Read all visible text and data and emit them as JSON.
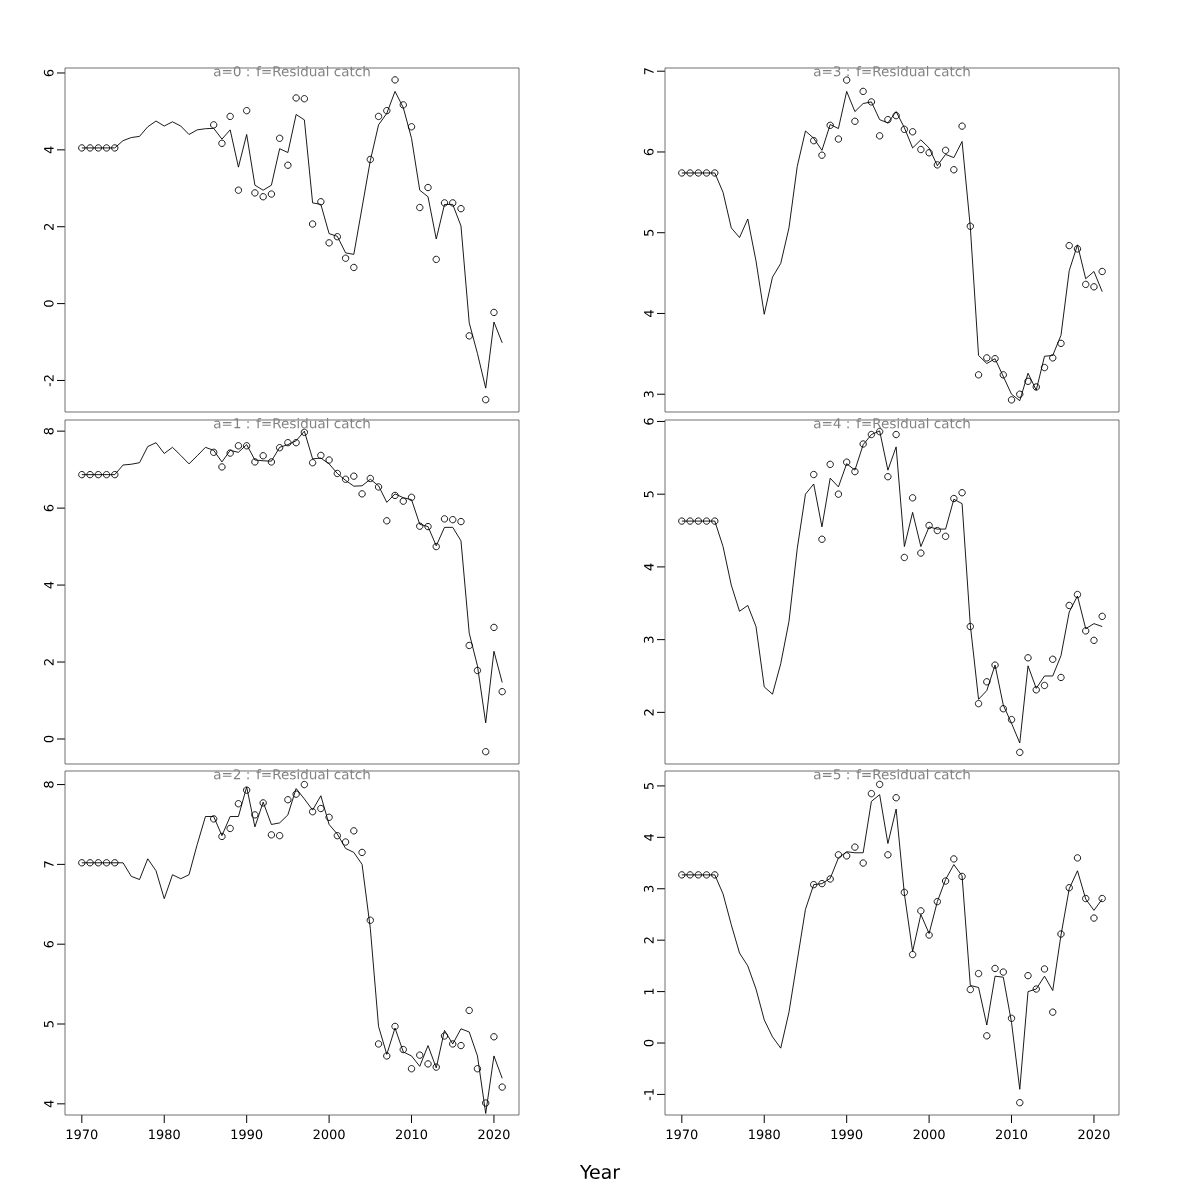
{
  "chart_data": [
    {
      "type": "line",
      "title": "a=0  :  f=Residual catch",
      "xlim": [
        1967.96,
        2023.04
      ],
      "ylim": [
        -2.82,
        6.13
      ],
      "yticks": [
        -2,
        0,
        2,
        4,
        6
      ],
      "tick_labels": "y",
      "series": [
        {
          "type": "line",
          "color": "#000000",
          "marker": "none",
          "x": [
            1970,
            1971,
            1972,
            1973,
            1974,
            1975,
            1976,
            1977,
            1978,
            1979,
            1980,
            1981,
            1982,
            1983,
            1984,
            1985,
            1986,
            1987,
            1988,
            1989,
            1990,
            1991,
            1992,
            1993,
            1994,
            1995,
            1996,
            1997,
            1998,
            1999,
            2000,
            2001,
            2002,
            2003,
            2004,
            2005,
            2006,
            2007,
            2008,
            2009,
            2010,
            2011,
            2012,
            2013,
            2014,
            2015,
            2016,
            2017,
            2018,
            2019,
            2020,
            2021
          ],
          "values": [
            4.05,
            4.05,
            4.05,
            4.05,
            4.05,
            4.24,
            4.32,
            4.35,
            4.6,
            4.75,
            4.62,
            4.73,
            4.62,
            4.4,
            4.52,
            4.55,
            4.56,
            4.28,
            4.52,
            3.55,
            4.4,
            3.08,
            2.95,
            3.08,
            4.03,
            3.93,
            4.92,
            4.78,
            2.62,
            2.58,
            1.82,
            1.75,
            1.32,
            1.28,
            2.5,
            3.72,
            4.65,
            4.95,
            5.52,
            5.1,
            4.3,
            2.95,
            2.78,
            1.68,
            2.58,
            2.58,
            2.02,
            -0.5,
            -1.3,
            -2.2,
            -0.48,
            -1.02
          ]
        },
        {
          "type": "scatter",
          "color": "#000000",
          "marker": "circle",
          "x": [
            1970,
            1971,
            1972,
            1973,
            1974,
            1986,
            1987,
            1988,
            1989,
            1990,
            1991,
            1992,
            1993,
            1994,
            1995,
            1996,
            1997,
            1998,
            1999,
            2000,
            2001,
            2002,
            2003,
            2005,
            2006,
            2007,
            2008,
            2009,
            2010,
            2011,
            2012,
            2013,
            2014,
            2015,
            2016,
            2017,
            2019,
            2020
          ],
          "values": [
            4.05,
            4.05,
            4.05,
            4.05,
            4.05,
            4.65,
            4.17,
            4.87,
            2.95,
            5.02,
            2.88,
            2.78,
            2.85,
            4.3,
            3.6,
            5.35,
            5.33,
            2.07,
            2.65,
            1.58,
            1.74,
            1.18,
            0.94,
            3.75,
            4.87,
            5.02,
            5.82,
            5.17,
            4.6,
            2.5,
            3.02,
            1.15,
            2.62,
            2.62,
            2.47,
            -0.84,
            -2.5,
            -0.23
          ]
        }
      ]
    },
    {
      "type": "line",
      "title": "a=1  :  f=Residual catch",
      "xlim": [
        1967.96,
        2023.04
      ],
      "ylim": [
        -0.65,
        8.29
      ],
      "yticks": [
        0,
        2,
        4,
        6,
        8
      ],
      "tick_labels": "y",
      "series": [
        {
          "type": "line",
          "color": "#000000",
          "marker": "none",
          "x": [
            1970,
            1971,
            1972,
            1973,
            1974,
            1975,
            1976,
            1977,
            1978,
            1979,
            1980,
            1981,
            1982,
            1983,
            1984,
            1985,
            1986,
            1987,
            1988,
            1989,
            1990,
            1991,
            1992,
            1993,
            1994,
            1995,
            1996,
            1997,
            1998,
            1999,
            2000,
            2001,
            2002,
            2003,
            2004,
            2005,
            2006,
            2007,
            2008,
            2009,
            2010,
            2011,
            2012,
            2013,
            2014,
            2015,
            2016,
            2017,
            2018,
            2019,
            2020,
            2021
          ],
          "values": [
            6.87,
            6.87,
            6.87,
            6.87,
            6.87,
            7.12,
            7.14,
            7.18,
            7.6,
            7.7,
            7.42,
            7.58,
            7.37,
            7.15,
            7.36,
            7.58,
            7.5,
            7.2,
            7.5,
            7.45,
            7.65,
            7.25,
            7.23,
            7.22,
            7.58,
            7.65,
            7.75,
            8.0,
            7.28,
            7.3,
            7.15,
            6.9,
            6.72,
            6.57,
            6.58,
            6.75,
            6.58,
            6.15,
            6.37,
            6.27,
            6.22,
            5.58,
            5.52,
            5.02,
            5.5,
            5.5,
            5.15,
            2.75,
            1.9,
            0.42,
            2.28,
            1.47
          ]
        },
        {
          "type": "scatter",
          "color": "#000000",
          "marker": "circle",
          "x": [
            1970,
            1971,
            1972,
            1973,
            1974,
            1986,
            1987,
            1988,
            1989,
            1990,
            1991,
            1992,
            1993,
            1994,
            1995,
            1996,
            1997,
            1998,
            1999,
            2000,
            2001,
            2002,
            2003,
            2004,
            2005,
            2006,
            2007,
            2008,
            2009,
            2010,
            2011,
            2012,
            2013,
            2014,
            2015,
            2016,
            2017,
            2018,
            2019,
            2020,
            2021
          ],
          "values": [
            6.87,
            6.87,
            6.87,
            6.87,
            6.87,
            7.45,
            7.07,
            7.43,
            7.62,
            7.62,
            7.2,
            7.36,
            7.2,
            7.57,
            7.7,
            7.7,
            7.97,
            7.18,
            7.37,
            7.25,
            6.9,
            6.75,
            6.83,
            6.37,
            6.77,
            6.55,
            5.67,
            6.33,
            6.18,
            6.28,
            5.53,
            5.52,
            5.0,
            5.72,
            5.7,
            5.65,
            2.43,
            1.78,
            -0.33,
            2.9,
            1.23
          ]
        }
      ]
    },
    {
      "type": "line",
      "title": "a=2  :  f=Residual catch",
      "xlabel": "Year",
      "xlim": [
        1967.96,
        2023.04
      ],
      "xticks": [
        1970,
        1980,
        1990,
        2000,
        2010,
        2020
      ],
      "ylim": [
        3.86,
        8.17
      ],
      "yticks": [
        4,
        5,
        6,
        7,
        8
      ],
      "series": [
        {
          "type": "line",
          "color": "#000000",
          "marker": "none",
          "x": [
            1970,
            1971,
            1972,
            1973,
            1974,
            1975,
            1976,
            1977,
            1978,
            1979,
            1980,
            1981,
            1982,
            1983,
            1984,
            1985,
            1986,
            1987,
            1988,
            1989,
            1990,
            1991,
            1992,
            1993,
            1994,
            1995,
            1996,
            1997,
            1998,
            1999,
            2000,
            2001,
            2002,
            2003,
            2004,
            2005,
            2006,
            2007,
            2008,
            2009,
            2010,
            2011,
            2012,
            2013,
            2014,
            2015,
            2016,
            2017,
            2018,
            2019,
            2020,
            2021
          ],
          "values": [
            7.02,
            7.02,
            7.02,
            7.02,
            7.02,
            7.02,
            6.85,
            6.81,
            7.07,
            6.92,
            6.57,
            6.87,
            6.82,
            6.87,
            7.25,
            7.6,
            7.6,
            7.36,
            7.6,
            7.6,
            7.97,
            7.47,
            7.78,
            7.5,
            7.52,
            7.62,
            7.95,
            7.82,
            7.68,
            7.86,
            7.5,
            7.38,
            7.2,
            7.15,
            7.0,
            6.2,
            4.97,
            4.62,
            4.95,
            4.65,
            4.6,
            4.47,
            4.73,
            4.45,
            4.92,
            4.75,
            4.94,
            4.9,
            4.6,
            3.88,
            4.6,
            4.32
          ]
        },
        {
          "type": "scatter",
          "color": "#000000",
          "marker": "circle",
          "x": [
            1970,
            1971,
            1972,
            1973,
            1974,
            1986,
            1987,
            1988,
            1989,
            1990,
            1991,
            1992,
            1993,
            1994,
            1995,
            1996,
            1997,
            1998,
            1999,
            2000,
            2001,
            2002,
            2003,
            2004,
            2005,
            2006,
            2007,
            2008,
            2009,
            2010,
            2011,
            2012,
            2013,
            2014,
            2015,
            2016,
            2017,
            2018,
            2019,
            2020,
            2021
          ],
          "values": [
            7.02,
            7.02,
            7.02,
            7.02,
            7.02,
            7.57,
            7.35,
            7.45,
            7.76,
            7.93,
            7.62,
            7.77,
            7.37,
            7.36,
            7.81,
            7.88,
            8.0,
            7.66,
            7.7,
            7.59,
            7.36,
            7.28,
            7.42,
            7.15,
            6.3,
            4.75,
            4.6,
            4.97,
            4.68,
            4.44,
            4.61,
            4.5,
            4.46,
            4.85,
            4.75,
            4.73,
            5.17,
            4.44,
            4.01,
            4.84,
            4.21
          ]
        }
      ]
    },
    {
      "type": "line",
      "title": "a=3  :  f=Residual catch",
      "xlim": [
        1967.96,
        2023.04
      ],
      "ylim": [
        2.78,
        7.04
      ],
      "yticks": [
        3,
        4,
        5,
        6,
        7
      ],
      "tick_labels": "y",
      "series": [
        {
          "type": "line",
          "color": "#000000",
          "marker": "none",
          "x": [
            1970,
            1971,
            1972,
            1973,
            1974,
            1975,
            1976,
            1977,
            1978,
            1979,
            1980,
            1981,
            1982,
            1983,
            1984,
            1985,
            1986,
            1987,
            1988,
            1989,
            1990,
            1991,
            1992,
            1993,
            1994,
            1995,
            1996,
            1997,
            1998,
            1999,
            2000,
            2001,
            2002,
            2003,
            2004,
            2005,
            2006,
            2007,
            2008,
            2009,
            2010,
            2011,
            2012,
            2013,
            2014,
            2015,
            2016,
            2017,
            2018,
            2019,
            2020,
            2021
          ],
          "values": [
            5.74,
            5.74,
            5.74,
            5.74,
            5.74,
            5.5,
            5.06,
            4.94,
            5.17,
            4.65,
            3.99,
            4.45,
            4.62,
            5.06,
            5.82,
            6.26,
            6.17,
            6.02,
            6.34,
            6.29,
            6.75,
            6.5,
            6.6,
            6.62,
            6.4,
            6.36,
            6.5,
            6.3,
            6.05,
            6.15,
            6.05,
            5.83,
            5.97,
            5.93,
            6.13,
            5.07,
            3.48,
            3.38,
            3.44,
            3.22,
            3.0,
            2.92,
            3.26,
            3.05,
            3.47,
            3.48,
            3.73,
            4.53,
            4.85,
            4.43,
            4.52,
            4.27
          ]
        },
        {
          "type": "scatter",
          "color": "#000000",
          "marker": "circle",
          "x": [
            1970,
            1971,
            1972,
            1973,
            1974,
            1986,
            1987,
            1988,
            1989,
            1990,
            1991,
            1992,
            1993,
            1994,
            1995,
            1996,
            1997,
            1998,
            1999,
            2000,
            2001,
            2002,
            2003,
            2004,
            2005,
            2006,
            2007,
            2008,
            2009,
            2010,
            2011,
            2012,
            2013,
            2014,
            2015,
            2016,
            2017,
            2018,
            2019,
            2020,
            2021
          ],
          "values": [
            5.74,
            5.74,
            5.74,
            5.74,
            5.74,
            6.14,
            5.96,
            6.33,
            6.16,
            6.89,
            6.38,
            6.75,
            6.62,
            6.2,
            6.4,
            6.45,
            6.28,
            6.25,
            6.03,
            5.99,
            5.84,
            6.02,
            5.78,
            6.32,
            5.08,
            3.24,
            3.45,
            3.44,
            3.24,
            2.93,
            3.0,
            3.16,
            3.09,
            3.33,
            3.45,
            3.63,
            4.84,
            4.8,
            4.36,
            4.33,
            4.52
          ]
        }
      ]
    },
    {
      "type": "line",
      "title": "a=4  :  f=Residual catch",
      "xlim": [
        1967.96,
        2023.04
      ],
      "ylim": [
        1.29,
        6.02
      ],
      "yticks": [
        2,
        3,
        4,
        5,
        6
      ],
      "tick_labels": "y",
      "series": [
        {
          "type": "line",
          "color": "#000000",
          "marker": "none",
          "x": [
            1970,
            1971,
            1972,
            1973,
            1974,
            1975,
            1976,
            1977,
            1978,
            1979,
            1980,
            1981,
            1982,
            1983,
            1984,
            1985,
            1986,
            1987,
            1988,
            1989,
            1990,
            1991,
            1992,
            1993,
            1994,
            1995,
            1996,
            1997,
            1998,
            1999,
            2000,
            2001,
            2002,
            2003,
            2004,
            2005,
            2006,
            2007,
            2008,
            2009,
            2010,
            2011,
            2012,
            2013,
            2014,
            2015,
            2016,
            2017,
            2018,
            2019,
            2020,
            2021
          ],
          "values": [
            4.63,
            4.63,
            4.63,
            4.63,
            4.63,
            4.28,
            3.75,
            3.39,
            3.47,
            3.18,
            2.35,
            2.25,
            2.67,
            3.25,
            4.25,
            5.0,
            5.14,
            4.55,
            5.22,
            5.1,
            5.42,
            5.33,
            5.68,
            5.82,
            5.87,
            5.33,
            5.65,
            4.28,
            4.75,
            4.28,
            4.55,
            4.52,
            4.52,
            4.93,
            4.87,
            3.2,
            2.18,
            2.3,
            2.65,
            2.1,
            1.85,
            1.58,
            2.64,
            2.33,
            2.5,
            2.5,
            2.78,
            3.38,
            3.6,
            3.15,
            3.22,
            3.18
          ]
        },
        {
          "type": "scatter",
          "color": "#000000",
          "marker": "circle",
          "x": [
            1970,
            1971,
            1972,
            1973,
            1974,
            1986,
            1987,
            1988,
            1989,
            1990,
            1991,
            1992,
            1993,
            1994,
            1995,
            1996,
            1997,
            1998,
            1999,
            2000,
            2001,
            2002,
            2003,
            2004,
            2005,
            2006,
            2007,
            2008,
            2009,
            2010,
            2011,
            2012,
            2013,
            2014,
            2015,
            2016,
            2017,
            2018,
            2019,
            2020,
            2021
          ],
          "values": [
            4.63,
            4.63,
            4.63,
            4.63,
            4.63,
            5.27,
            4.38,
            5.41,
            5.0,
            5.44,
            5.31,
            5.69,
            5.82,
            5.86,
            5.24,
            5.82,
            4.13,
            4.95,
            4.19,
            4.57,
            4.5,
            4.42,
            4.94,
            5.02,
            3.18,
            2.12,
            2.42,
            2.65,
            2.05,
            1.9,
            1.45,
            2.75,
            2.31,
            2.37,
            2.73,
            2.48,
            3.47,
            3.62,
            3.12,
            2.99,
            3.32
          ]
        }
      ]
    },
    {
      "type": "line",
      "title": "a=5  :  f=Residual catch",
      "xlim": [
        1967.96,
        2023.04
      ],
      "xticks": [
        1970,
        1980,
        1990,
        2000,
        2010,
        2020
      ],
      "ylim": [
        -1.4,
        5.29
      ],
      "yticks": [
        -1,
        0,
        1,
        2,
        3,
        4,
        5
      ],
      "series": [
        {
          "type": "line",
          "color": "#000000",
          "marker": "none",
          "x": [
            1970,
            1971,
            1972,
            1973,
            1974,
            1975,
            1976,
            1977,
            1978,
            1979,
            1980,
            1981,
            1982,
            1983,
            1984,
            1985,
            1986,
            1987,
            1988,
            1989,
            1990,
            1991,
            1992,
            1993,
            1994,
            1995,
            1996,
            1997,
            1998,
            1999,
            2000,
            2001,
            2002,
            2003,
            2004,
            2005,
            2006,
            2007,
            2008,
            2009,
            2010,
            2011,
            2012,
            2013,
            2014,
            2015,
            2016,
            2017,
            2018,
            2019,
            2020,
            2021
          ],
          "values": [
            3.27,
            3.27,
            3.27,
            3.27,
            3.27,
            2.9,
            2.3,
            1.75,
            1.5,
            1.05,
            0.45,
            0.12,
            -0.1,
            0.6,
            1.6,
            2.6,
            3.08,
            3.1,
            3.2,
            3.6,
            3.72,
            3.7,
            3.7,
            4.7,
            4.83,
            3.88,
            4.55,
            2.9,
            1.78,
            2.5,
            2.13,
            2.75,
            3.18,
            3.47,
            3.25,
            1.12,
            1.08,
            0.35,
            1.3,
            1.28,
            0.4,
            -0.9,
            1.0,
            1.05,
            1.3,
            1.02,
            2.1,
            3.0,
            3.35,
            2.8,
            2.58,
            2.8
          ]
        },
        {
          "type": "scatter",
          "color": "#000000",
          "marker": "circle",
          "x": [
            1970,
            1971,
            1972,
            1973,
            1974,
            1986,
            1987,
            1988,
            1989,
            1990,
            1991,
            1992,
            1993,
            1994,
            1995,
            1996,
            1997,
            1998,
            1999,
            2000,
            2001,
            2002,
            2003,
            2004,
            2005,
            2006,
            2007,
            2008,
            2009,
            2010,
            2011,
            2012,
            2013,
            2014,
            2015,
            2016,
            2017,
            2018,
            2019,
            2020,
            2021
          ],
          "values": [
            3.27,
            3.27,
            3.27,
            3.27,
            3.27,
            3.08,
            3.1,
            3.19,
            3.66,
            3.64,
            3.81,
            3.5,
            4.85,
            5.03,
            3.66,
            4.77,
            2.93,
            1.72,
            2.57,
            2.1,
            2.75,
            3.15,
            3.58,
            3.24,
            1.04,
            1.35,
            0.14,
            1.45,
            1.38,
            0.48,
            -1.16,
            1.31,
            1.05,
            1.44,
            0.6,
            2.12,
            3.02,
            3.6,
            2.81,
            2.43,
            2.81
          ]
        }
      ]
    }
  ]
}
